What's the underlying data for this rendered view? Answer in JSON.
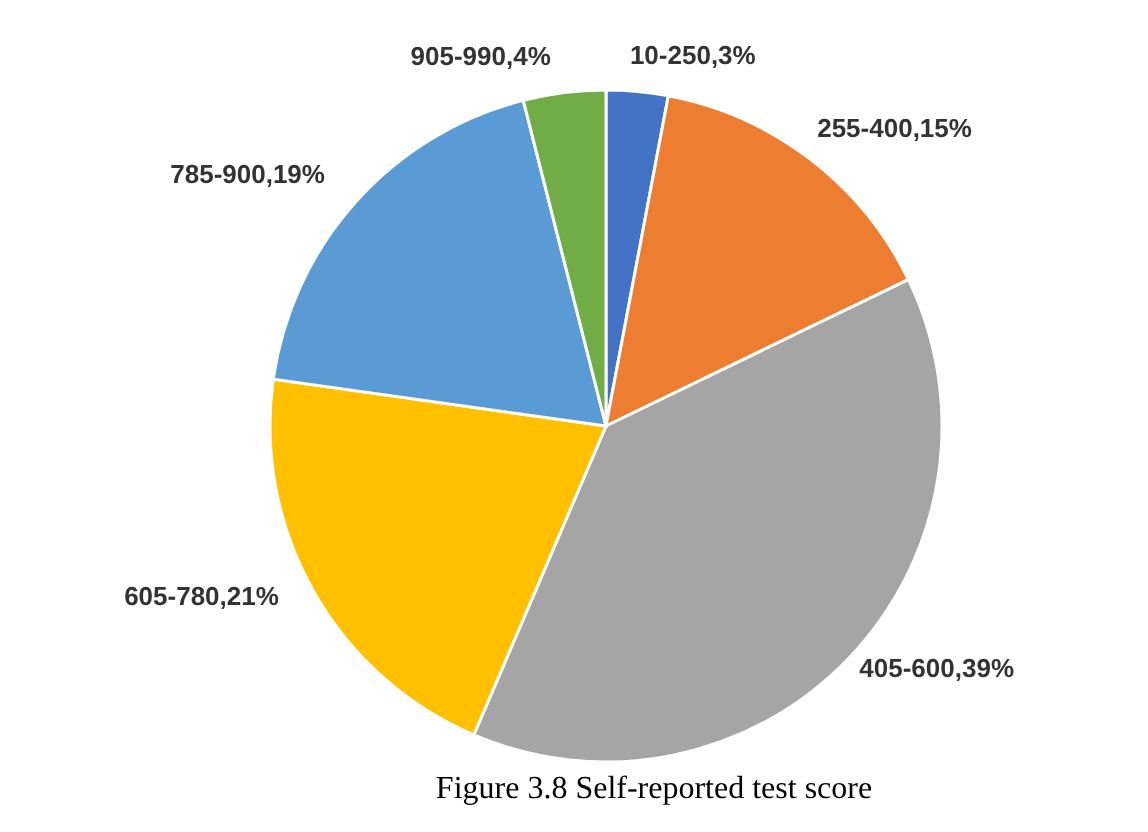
{
  "chart_data": {
    "type": "pie",
    "title": "Figure 3.8 Self-reported test score",
    "categories": [
      "10-250",
      "255-400",
      "405-600",
      "605-780",
      "785-900",
      "905-990"
    ],
    "values": [
      3,
      15,
      39,
      21,
      19,
      4
    ],
    "value_labels": [
      ",3%",
      ",15%",
      ",39%",
      ",21%",
      ",19%",
      ",4%"
    ],
    "legend": false,
    "colors": [
      "#4472c4",
      "#ed7d31",
      "#a5a5a5",
      "#ffc000",
      "#5b9bd5",
      "#70ad47"
    ]
  }
}
